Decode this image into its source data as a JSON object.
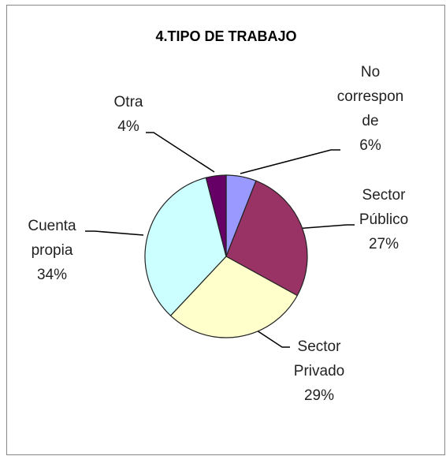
{
  "chart_data": {
    "type": "pie",
    "title": "4.TIPO DE TRABAJO",
    "categories": [
      "No corresponde",
      "Sector Público",
      "Sector Privado",
      "Cuenta propia",
      "Otra"
    ],
    "values": [
      6,
      27,
      29,
      34,
      4
    ],
    "value_labels": [
      "6%",
      "27%",
      "29%",
      "34%",
      "4%"
    ],
    "colors": [
      "#9999ff",
      "#993366",
      "#ffffcc",
      "#ccffff",
      "#660066"
    ]
  }
}
